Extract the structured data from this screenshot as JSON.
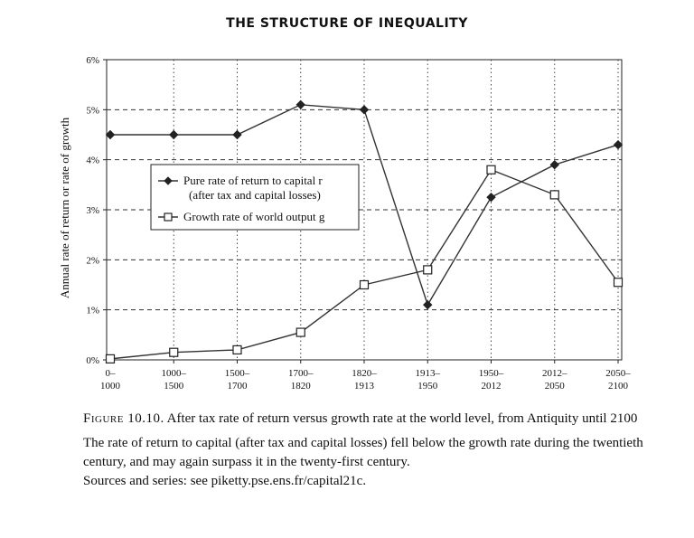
{
  "header": {
    "running_title": "THE STRUCTURE OF INEQUALITY"
  },
  "chart_data": {
    "type": "line",
    "ylabel": "Annual rate of return or rate of growth",
    "xlabel": "",
    "ylim": [
      0,
      6
    ],
    "y_ticks": [
      "0%",
      "1%",
      "2%",
      "3%",
      "4%",
      "5%",
      "6%"
    ],
    "categories": [
      [
        "0–",
        "1000"
      ],
      [
        "1000–",
        "1500"
      ],
      [
        "1500–",
        "1700"
      ],
      [
        "1700–",
        "1820"
      ],
      [
        "1820–",
        "1913"
      ],
      [
        "1913–",
        "1950"
      ],
      [
        "1950–",
        "2012"
      ],
      [
        "2012–",
        "2050"
      ],
      [
        "2050–",
        "2100"
      ]
    ],
    "grid": true,
    "legend_position": "upper-left",
    "series": [
      {
        "name_lines": [
          "Pure rate of return to capital r",
          "(after tax and capital losses)"
        ],
        "marker": "filled-diamond",
        "values": [
          4.5,
          4.5,
          4.5,
          5.1,
          5.0,
          1.1,
          3.25,
          3.9,
          4.3
        ]
      },
      {
        "name_lines": [
          "Growth rate of world output g"
        ],
        "marker": "open-square",
        "values": [
          0.02,
          0.15,
          0.2,
          0.55,
          1.5,
          1.8,
          3.8,
          3.3,
          1.55
        ]
      }
    ]
  },
  "caption": {
    "figure_label": "Figure 10.10.",
    "figure_title": "After tax rate of return versus growth rate at the world level, from Antiquity until 2100",
    "description": "The rate of return to capital (after tax and capital losses) fell below the growth rate during the twentieth century, and may again surpass it in the twenty-first century.",
    "sources": "Sources and series: see piketty.pse.ens.fr/capital21c."
  }
}
